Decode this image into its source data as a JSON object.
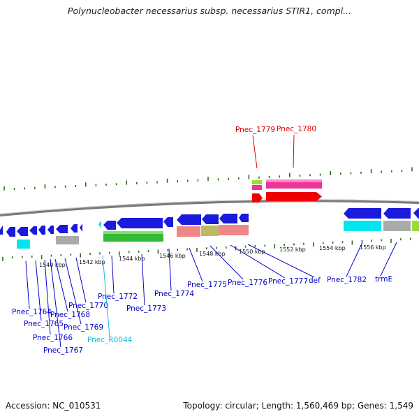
{
  "title": "Polynucleobacter necessarius subsp. necessarius STIR1, compl...",
  "footer": {
    "accession": "Accession: NC_010531",
    "summary": "Topology: circular; Length: 1,560,469 bp; Genes: 1,549"
  },
  "colors": {
    "forward_cds": "#dd0000",
    "reverse_cds": "#0000cc",
    "pseudo": "#00cccc",
    "tick": "#2d6e1b",
    "backbone": "#7a7a7a",
    "gc_pink": "#ee3399",
    "gc_green": "#99dd33",
    "gc_cyan": "#00e5ee",
    "gc_gray": "#aaaaaa",
    "gc_salmon": "#ee8888",
    "gc_olive": "#bbbb66"
  },
  "scale_labels": [
    "1540 kbp",
    "1542 kbp",
    "1544 kbp",
    "1546 kbp",
    "1548 kbp",
    "1550 kbp",
    "1552 kbp",
    "1554 kbp",
    "1556 kbp"
  ],
  "genes_top": [
    {
      "name": "Pnec_1779",
      "color": "#dd0000"
    },
    {
      "name": "Pnec_1780",
      "color": "#dd0000"
    }
  ],
  "genes_bottom": [
    {
      "name": "Pnec_1764",
      "color": "#0000cc"
    },
    {
      "name": "Pnec_1765",
      "color": "#0000cc"
    },
    {
      "name": "Pnec_1766",
      "color": "#0000cc"
    },
    {
      "name": "Pnec_1767",
      "color": "#0000cc"
    },
    {
      "name": "Pnec_1768",
      "color": "#0000cc"
    },
    {
      "name": "Pnec_1769",
      "color": "#0000cc"
    },
    {
      "name": "Pnec_1770",
      "color": "#0000cc"
    },
    {
      "name": "Pnec_R0044",
      "color": "#11bbdd"
    },
    {
      "name": "Pnec_1772",
      "color": "#0000cc"
    },
    {
      "name": "Pnec_1773",
      "color": "#0000cc"
    },
    {
      "name": "Pnec_1774",
      "color": "#0000cc"
    },
    {
      "name": "Pnec_1775",
      "color": "#0000cc"
    },
    {
      "name": "Pnec_1776",
      "color": "#0000cc"
    },
    {
      "name": "Pnec_1777",
      "color": "#0000cc"
    },
    {
      "name": "def",
      "color": "#0000cc"
    },
    {
      "name": "Pnec_1782",
      "color": "#0000cc"
    },
    {
      "name": "trmE",
      "color": "#0000cc"
    }
  ]
}
